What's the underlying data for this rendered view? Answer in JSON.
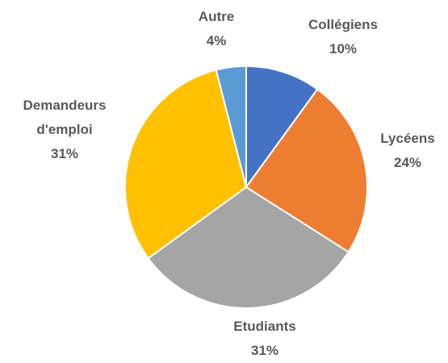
{
  "chart_data": {
    "type": "pie",
    "categories": [
      "Collégiens",
      "Lycéens",
      "Etudiants",
      "Demandeurs d'emploi",
      "Autre"
    ],
    "values": [
      10,
      24,
      31,
      31,
      4
    ],
    "value_labels": [
      "10%",
      "24%",
      "31%",
      "31%",
      "4%"
    ],
    "colors": [
      "#4472c4",
      "#ed7d31",
      "#a5a5a5",
      "#ffc000",
      "#5b9bd5"
    ]
  }
}
